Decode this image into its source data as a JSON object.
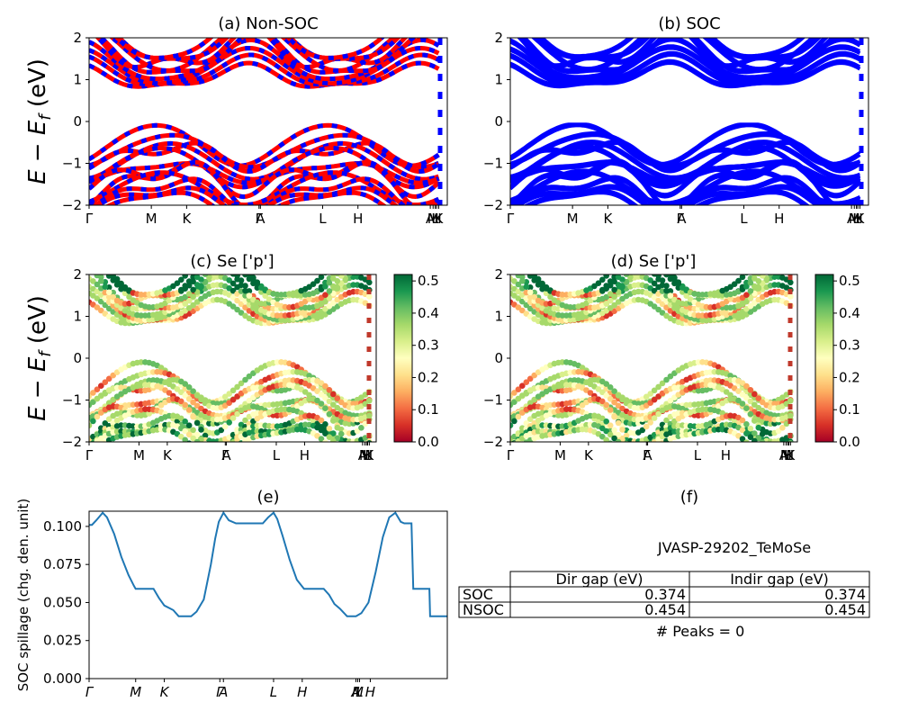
{
  "panels": {
    "a": {
      "title": "(a) Non-SOC"
    },
    "b": {
      "title": "(b) SOC"
    },
    "c": {
      "title": "(c)  Se ['p']"
    },
    "d": {
      "title": "(d) Se ['p']"
    },
    "e": {
      "title": "(e)"
    },
    "f": {
      "title": "(f)"
    }
  },
  "band_ylabel": "E − E",
  "band_ylabel_sub": "f",
  "band_ylabel_unit": " (eV)",
  "spillage_ylabel": "SOC spillage (chg. den. unit)",
  "material": "JVASP-29202_TeMoSe",
  "gap_table": {
    "headers": [
      "Dir gap (eV)",
      "Indir gap (eV)"
    ],
    "rows": [
      {
        "label": "SOC",
        "dir": "0.374",
        "indir": "0.374"
      },
      {
        "label": "NSOC",
        "dir": "0.454",
        "indir": "0.454"
      }
    ]
  },
  "peaks": "# Peaks = 0",
  "colorbar": {
    "colormap": "RdYlGn",
    "ticks": [
      "0.0",
      "0.1",
      "0.2",
      "0.3",
      "0.4",
      "0.5"
    ],
    "range": [
      0,
      0.52
    ]
  },
  "colors": {
    "nonsoc_a": "#ff0000",
    "nonsoc_b": "#0000ff",
    "soc": "#0000ff",
    "spillage": "#1f77b4"
  },
  "chart_data": [
    {
      "panel": "a",
      "type": "line",
      "title": "(a) Non-SOC",
      "ylim": [
        -2,
        2
      ],
      "yticks": [
        "2",
        "1",
        "0",
        "−1",
        "−2"
      ],
      "kpath_labels": [
        "Γ",
        "M",
        "K",
        "Γ",
        "A",
        "L",
        "H",
        "A",
        "M",
        "L",
        "H",
        "K"
      ],
      "kpath_positions": [
        0,
        0.178,
        0.279,
        0.486,
        0.49,
        0.668,
        0.769,
        0.976,
        0.984,
        0.99,
        0.994,
        1.0
      ],
      "series": [
        {
          "color": "#ff0000"
        },
        {
          "color": "#0000ff"
        }
      ]
    },
    {
      "panel": "b",
      "type": "line",
      "title": "(b) SOC",
      "ylim": [
        -2,
        2
      ],
      "yticks": [
        "2",
        "1",
        "0",
        "−1",
        "−2"
      ],
      "kpath_labels": [
        "Γ",
        "M",
        "K",
        "Γ",
        "A",
        "L",
        "H",
        "A",
        "M",
        "L",
        "H",
        "K"
      ],
      "series": [
        {
          "color": "#0000ff"
        }
      ]
    },
    {
      "panel": "c",
      "type": "scatter",
      "title": "(c)  Se ['p']",
      "ylim": [
        -2,
        2
      ],
      "color_scale": [
        0,
        0.52
      ],
      "kpath_labels": [
        "Γ",
        "M",
        "K",
        "Γ",
        "A",
        "L",
        "H",
        "A",
        "M",
        "L",
        "H",
        "K"
      ]
    },
    {
      "panel": "d",
      "type": "scatter",
      "title": "(d) Se ['p']",
      "ylim": [
        -2,
        2
      ],
      "color_scale": [
        0,
        0.52
      ],
      "kpath_labels": [
        "Γ",
        "M",
        "K",
        "Γ",
        "A",
        "L",
        "H",
        "A",
        "M",
        "L",
        "H",
        "K"
      ]
    },
    {
      "panel": "e",
      "type": "line",
      "title": "(e)",
      "ylabel": "SOC spillage (chg. den. unit)",
      "ylim": [
        0,
        0.11
      ],
      "yticks": [
        "0.000",
        "0.025",
        "0.050",
        "0.075",
        "0.100"
      ],
      "xticks": [
        "Γ",
        "M",
        "K",
        "Γ",
        "A",
        "L",
        "H",
        "A",
        "M",
        "L",
        "H"
      ],
      "xtick_positions": [
        0,
        0.13,
        0.21,
        0.365,
        0.375,
        0.515,
        0.595,
        0.745,
        0.75,
        0.755,
        0.785
      ],
      "series": [
        {
          "x": [
            0,
            0.008,
            0.02,
            0.038,
            0.05,
            0.07,
            0.09,
            0.11,
            0.125,
            0.13,
            0.16,
            0.18,
            0.195,
            0.21,
            0.235,
            0.25,
            0.27,
            0.285,
            0.3,
            0.32,
            0.34,
            0.352,
            0.362,
            0.375,
            0.39,
            0.41,
            0.44,
            0.47,
            0.485,
            0.5,
            0.515,
            0.525,
            0.54,
            0.56,
            0.58,
            0.6,
            0.63,
            0.655,
            0.67,
            0.685,
            0.7,
            0.72,
            0.735,
            0.745,
            0.76,
            0.78,
            0.8,
            0.82,
            0.838,
            0.855,
            0.87,
            0.88,
            0.9,
            0.905,
            0.91,
            0.95,
            0.952,
            1.0
          ],
          "y": [
            0.101,
            0.101,
            0.104,
            0.109,
            0.106,
            0.095,
            0.08,
            0.068,
            0.061,
            0.059,
            0.059,
            0.059,
            0.053,
            0.048,
            0.045,
            0.041,
            0.041,
            0.041,
            0.044,
            0.052,
            0.075,
            0.092,
            0.103,
            0.109,
            0.104,
            0.102,
            0.102,
            0.102,
            0.102,
            0.106,
            0.109,
            0.105,
            0.094,
            0.078,
            0.065,
            0.059,
            0.059,
            0.059,
            0.055,
            0.049,
            0.046,
            0.041,
            0.041,
            0.041,
            0.043,
            0.05,
            0.07,
            0.093,
            0.106,
            0.109,
            0.103,
            0.102,
            0.102,
            0.059,
            0.059,
            0.059,
            0.041,
            0.041
          ]
        }
      ]
    }
  ]
}
